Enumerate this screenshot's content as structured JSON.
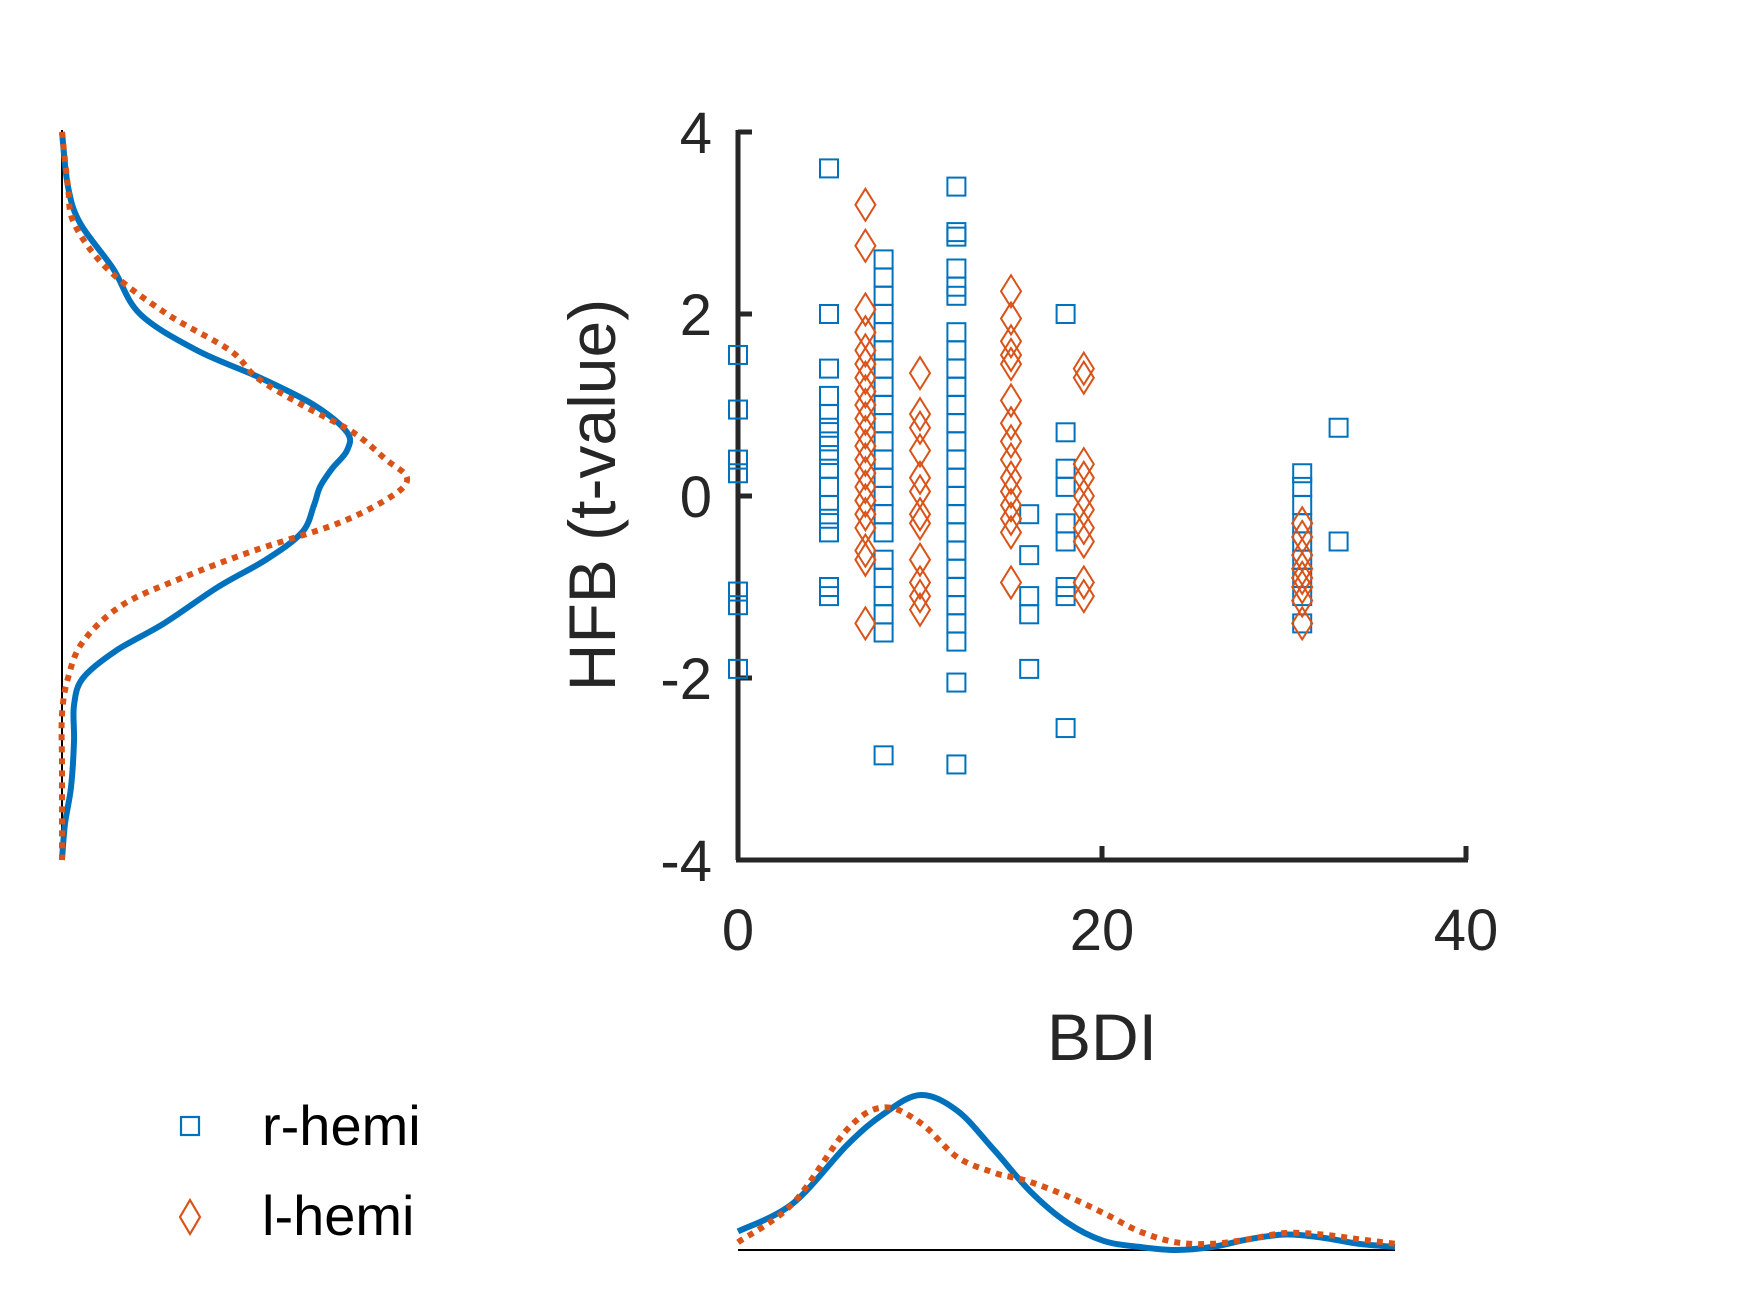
{
  "chart_data": {
    "type": "scatter",
    "xlabel": "BDI",
    "ylabel": "HFB (t-value)",
    "xlim": [
      0,
      40
    ],
    "ylim": [
      -4,
      4
    ],
    "xticks": [
      0,
      20,
      40
    ],
    "yticks": [
      -4,
      -2,
      0,
      2,
      4
    ],
    "grid": false,
    "legend_position": "bottom-left",
    "series": [
      {
        "name": "r-hemi",
        "marker": "square",
        "color": "#0072BD",
        "points": [
          [
            0,
            1.55
          ],
          [
            0,
            0.95
          ],
          [
            0,
            0.4
          ],
          [
            0,
            0.25
          ],
          [
            0,
            -1.05
          ],
          [
            0,
            -1.2
          ],
          [
            0,
            -1.9
          ],
          [
            5,
            3.6
          ],
          [
            5,
            2.0
          ],
          [
            5,
            1.4
          ],
          [
            5,
            1.1
          ],
          [
            5,
            0.9
          ],
          [
            5,
            0.75
          ],
          [
            5,
            0.6
          ],
          [
            5,
            0.45
          ],
          [
            5,
            0.3
          ],
          [
            5,
            0.1
          ],
          [
            5,
            -0.1
          ],
          [
            5,
            -0.25
          ],
          [
            5,
            -0.4
          ],
          [
            5,
            -1.0
          ],
          [
            5,
            -1.1
          ],
          [
            8,
            2.6
          ],
          [
            8,
            2.4
          ],
          [
            8,
            2.2
          ],
          [
            8,
            2.0
          ],
          [
            8,
            1.8
          ],
          [
            8,
            1.6
          ],
          [
            8,
            1.4
          ],
          [
            8,
            1.2
          ],
          [
            8,
            1.0
          ],
          [
            8,
            0.8
          ],
          [
            8,
            0.6
          ],
          [
            8,
            0.4
          ],
          [
            8,
            0.2
          ],
          [
            8,
            0.0
          ],
          [
            8,
            -0.2
          ],
          [
            8,
            -0.4
          ],
          [
            8,
            -0.7
          ],
          [
            8,
            -0.9
          ],
          [
            8,
            -1.1
          ],
          [
            8,
            -1.3
          ],
          [
            8,
            -1.5
          ],
          [
            8,
            -2.85
          ],
          [
            12,
            3.4
          ],
          [
            12,
            2.9
          ],
          [
            12,
            2.85
          ],
          [
            12,
            2.5
          ],
          [
            12,
            2.3
          ],
          [
            12,
            2.2
          ],
          [
            12,
            1.8
          ],
          [
            12,
            1.6
          ],
          [
            12,
            1.4
          ],
          [
            12,
            1.2
          ],
          [
            12,
            1.0
          ],
          [
            12,
            0.8
          ],
          [
            12,
            0.6
          ],
          [
            12,
            0.4
          ],
          [
            12,
            0.2
          ],
          [
            12,
            0.0
          ],
          [
            12,
            -0.2
          ],
          [
            12,
            -0.4
          ],
          [
            12,
            -0.6
          ],
          [
            12,
            -0.8
          ],
          [
            12,
            -1.0
          ],
          [
            12,
            -1.2
          ],
          [
            12,
            -1.4
          ],
          [
            12,
            -1.6
          ],
          [
            12,
            -2.05
          ],
          [
            12,
            -2.95
          ],
          [
            16,
            -0.2
          ],
          [
            16,
            -0.65
          ],
          [
            16,
            -1.1
          ],
          [
            16,
            -1.3
          ],
          [
            16,
            -1.9
          ],
          [
            18,
            2.0
          ],
          [
            18,
            0.7
          ],
          [
            18,
            0.3
          ],
          [
            18,
            0.1
          ],
          [
            18,
            -0.3
          ],
          [
            18,
            -0.5
          ],
          [
            18,
            -1.0
          ],
          [
            18,
            -1.1
          ],
          [
            18,
            -2.55
          ],
          [
            31,
            0.25
          ],
          [
            31,
            0.1
          ],
          [
            31,
            -0.1
          ],
          [
            31,
            -0.3
          ],
          [
            31,
            -0.5
          ],
          [
            31,
            -0.7
          ],
          [
            31,
            -0.9
          ],
          [
            31,
            -1.1
          ],
          [
            31,
            -1.4
          ],
          [
            33,
            0.75
          ],
          [
            33,
            -0.5
          ]
        ]
      },
      {
        "name": "l-hemi",
        "marker": "diamond",
        "color": "#D95319",
        "points": [
          [
            7,
            3.2
          ],
          [
            7,
            2.75
          ],
          [
            7,
            2.05
          ],
          [
            7,
            1.8
          ],
          [
            7,
            1.6
          ],
          [
            7,
            1.45
          ],
          [
            7,
            1.3
          ],
          [
            7,
            1.15
          ],
          [
            7,
            1.0
          ],
          [
            7,
            0.85
          ],
          [
            7,
            0.7
          ],
          [
            7,
            0.55
          ],
          [
            7,
            0.4
          ],
          [
            7,
            0.25
          ],
          [
            7,
            0.1
          ],
          [
            7,
            -0.05
          ],
          [
            7,
            -0.2
          ],
          [
            7,
            -0.35
          ],
          [
            7,
            -0.6
          ],
          [
            7,
            -0.7
          ],
          [
            7,
            -1.4
          ],
          [
            10,
            1.35
          ],
          [
            10,
            0.9
          ],
          [
            10,
            0.75
          ],
          [
            10,
            0.5
          ],
          [
            10,
            0.2
          ],
          [
            10,
            0.05
          ],
          [
            10,
            -0.2
          ],
          [
            10,
            -0.3
          ],
          [
            10,
            -0.7
          ],
          [
            10,
            -0.95
          ],
          [
            10,
            -1.1
          ],
          [
            10,
            -1.25
          ],
          [
            15,
            2.25
          ],
          [
            15,
            1.95
          ],
          [
            15,
            1.7
          ],
          [
            15,
            1.55
          ],
          [
            15,
            1.45
          ],
          [
            15,
            1.05
          ],
          [
            15,
            0.8
          ],
          [
            15,
            0.6
          ],
          [
            15,
            0.4
          ],
          [
            15,
            0.2
          ],
          [
            15,
            0.05
          ],
          [
            15,
            -0.1
          ],
          [
            15,
            -0.25
          ],
          [
            15,
            -0.4
          ],
          [
            15,
            -0.95
          ],
          [
            19,
            1.4
          ],
          [
            19,
            1.3
          ],
          [
            19,
            0.35
          ],
          [
            19,
            0.2
          ],
          [
            19,
            0.0
          ],
          [
            19,
            -0.15
          ],
          [
            19,
            -0.35
          ],
          [
            19,
            -0.5
          ],
          [
            19,
            -0.95
          ],
          [
            19,
            -1.1
          ],
          [
            31,
            -0.3
          ],
          [
            31,
            -0.45
          ],
          [
            31,
            -0.65
          ],
          [
            31,
            -0.8
          ],
          [
            31,
            -0.9
          ],
          [
            31,
            -1.0
          ],
          [
            31,
            -1.15
          ],
          [
            31,
            -1.4
          ]
        ]
      }
    ],
    "marginal_x_density": {
      "axis": "BDI",
      "range": [
        0,
        36
      ],
      "r-hemi": [
        [
          0,
          0.12
        ],
        [
          3,
          0.3
        ],
        [
          6,
          0.68
        ],
        [
          8,
          0.88
        ],
        [
          10,
          1.0
        ],
        [
          12,
          0.9
        ],
        [
          14,
          0.65
        ],
        [
          16,
          0.38
        ],
        [
          18,
          0.18
        ],
        [
          20,
          0.06
        ],
        [
          22,
          0.02
        ],
        [
          24,
          0.0
        ],
        [
          26,
          0.02
        ],
        [
          28,
          0.07
        ],
        [
          30,
          0.1
        ],
        [
          32,
          0.08
        ],
        [
          34,
          0.04
        ],
        [
          36,
          0.02
        ]
      ],
      "l-hemi": [
        [
          0,
          0.05
        ],
        [
          3,
          0.3
        ],
        [
          6,
          0.78
        ],
        [
          8,
          0.92
        ],
        [
          10,
          0.82
        ],
        [
          12,
          0.6
        ],
        [
          14,
          0.5
        ],
        [
          15,
          0.47
        ],
        [
          16,
          0.44
        ],
        [
          18,
          0.35
        ],
        [
          20,
          0.24
        ],
        [
          22,
          0.12
        ],
        [
          24,
          0.05
        ],
        [
          26,
          0.04
        ],
        [
          28,
          0.07
        ],
        [
          30,
          0.11
        ],
        [
          32,
          0.1
        ],
        [
          34,
          0.07
        ],
        [
          36,
          0.04
        ]
      ]
    },
    "marginal_y_density": {
      "axis": "HFB (t-value)",
      "range": [
        -4,
        4
      ],
      "r-hemi": [
        [
          4.0,
          0.0
        ],
        [
          3.4,
          0.02
        ],
        [
          3.0,
          0.06
        ],
        [
          2.5,
          0.17
        ],
        [
          2.0,
          0.26
        ],
        [
          1.6,
          0.45
        ],
        [
          1.3,
          0.66
        ],
        [
          1.0,
          0.84
        ],
        [
          0.7,
          0.95
        ],
        [
          0.5,
          0.95
        ],
        [
          0.3,
          0.9
        ],
        [
          0.1,
          0.86
        ],
        [
          -0.1,
          0.84
        ],
        [
          -0.4,
          0.8
        ],
        [
          -0.7,
          0.68
        ],
        [
          -1.0,
          0.52
        ],
        [
          -1.4,
          0.34
        ],
        [
          -1.7,
          0.18
        ],
        [
          -2.0,
          0.07
        ],
        [
          -2.3,
          0.04
        ],
        [
          -2.7,
          0.04
        ],
        [
          -3.2,
          0.03
        ],
        [
          -3.6,
          0.01
        ],
        [
          -4.0,
          0.0
        ]
      ],
      "l-hemi": [
        [
          4.0,
          0.0
        ],
        [
          3.4,
          0.02
        ],
        [
          3.0,
          0.04
        ],
        [
          2.5,
          0.15
        ],
        [
          2.0,
          0.35
        ],
        [
          1.6,
          0.56
        ],
        [
          1.3,
          0.65
        ],
        [
          1.0,
          0.8
        ],
        [
          0.7,
          0.97
        ],
        [
          0.4,
          1.08
        ],
        [
          0.2,
          1.15
        ],
        [
          0.0,
          1.1
        ],
        [
          -0.3,
          0.92
        ],
        [
          -0.6,
          0.64
        ],
        [
          -0.9,
          0.4
        ],
        [
          -1.2,
          0.2
        ],
        [
          -1.6,
          0.07
        ],
        [
          -2.0,
          0.02
        ],
        [
          -2.4,
          0.0
        ],
        [
          -3.0,
          0.0
        ],
        [
          -4.0,
          0.0
        ]
      ]
    }
  }
}
